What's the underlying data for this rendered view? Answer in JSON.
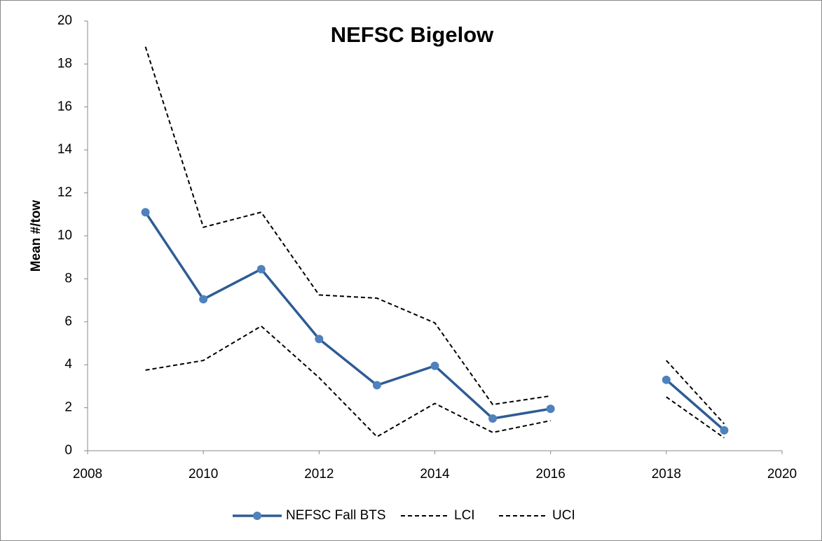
{
  "chart_data": {
    "type": "line",
    "title": "NEFSC Bigelow",
    "y_label": "Mean #/tow",
    "x": [
      2009,
      2010,
      2011,
      2012,
      2013,
      2014,
      2015,
      2016,
      2017,
      2018,
      2019
    ],
    "series": [
      {
        "name": "NEFSC Fall BTS",
        "color": "#2e5c94",
        "marker": true,
        "dashed": false,
        "values": [
          11.1,
          7.05,
          8.45,
          5.2,
          3.05,
          3.95,
          1.5,
          1.95,
          null,
          3.3,
          0.95
        ]
      },
      {
        "name": "LCI",
        "color": "#000000",
        "marker": false,
        "dashed": true,
        "values": [
          3.75,
          4.2,
          5.8,
          3.4,
          0.65,
          2.2,
          0.85,
          1.4,
          null,
          2.5,
          0.6
        ]
      },
      {
        "name": "UCI",
        "color": "#000000",
        "marker": false,
        "dashed": true,
        "values": [
          18.8,
          10.4,
          11.1,
          7.25,
          7.1,
          5.95,
          2.15,
          2.55,
          null,
          4.2,
          1.25
        ]
      }
    ],
    "xlim": [
      2008,
      2020
    ],
    "xticks": [
      2008,
      2010,
      2012,
      2014,
      2016,
      2018,
      2020
    ],
    "ylim": [
      0,
      20
    ],
    "yticks": [
      0,
      2,
      4,
      6,
      8,
      10,
      12,
      14,
      16,
      18,
      20
    ],
    "grid": false,
    "legend": "bottom"
  }
}
